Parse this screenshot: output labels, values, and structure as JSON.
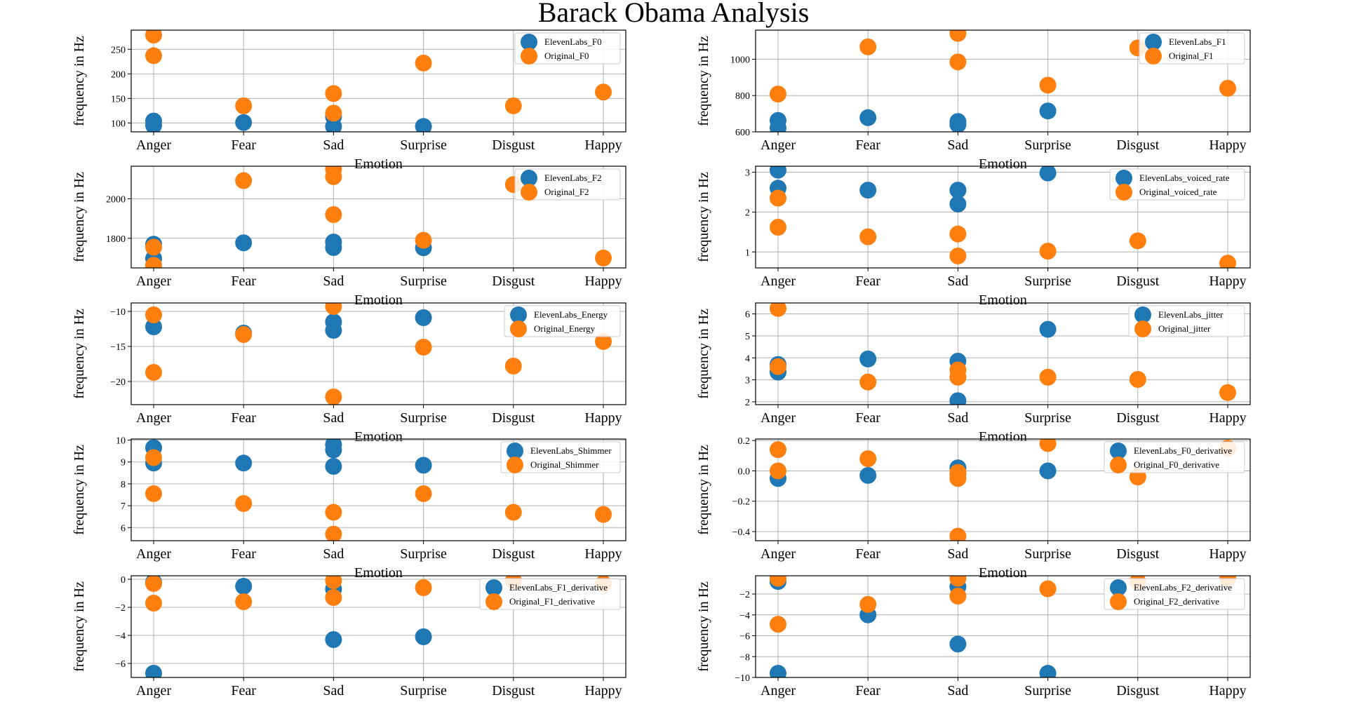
{
  "title": "Barack Obama Analysis",
  "colors": {
    "elevenlabs": "#1f77b4",
    "original": "#ff7f0e",
    "grid": "#b0b0b0"
  },
  "chart_data": [
    {
      "type": "scatter",
      "xlabel": "Emotion",
      "ylabel": "frequency in Hz",
      "categories": [
        "Anger",
        "Fear",
        "Sad",
        "Surprise",
        "Disgust",
        "Happy"
      ],
      "ylim": [
        82,
        289
      ],
      "yticks": [
        100,
        150,
        200,
        250
      ],
      "ytick_labels": [
        "100",
        "150",
        "200",
        "250"
      ],
      "grid": true,
      "legend": "top-right",
      "series": [
        {
          "name": "ElevenLabs_F0",
          "points": [
            [
              "Anger",
              104
            ],
            [
              "Anger",
              95
            ],
            [
              "Fear",
              101
            ],
            [
              "Sad",
              113
            ],
            [
              "Sad",
              93
            ],
            [
              "Surprise",
              93
            ]
          ]
        },
        {
          "name": "Original_F0",
          "points": [
            [
              "Anger",
              279
            ],
            [
              "Anger",
              237
            ],
            [
              "Fear",
              135
            ],
            [
              "Sad",
              160
            ],
            [
              "Sad",
              120
            ],
            [
              "Surprise",
              222
            ],
            [
              "Disgust",
              135
            ],
            [
              "Happy",
              163
            ]
          ]
        }
      ]
    },
    {
      "type": "scatter",
      "xlabel": "Emotion",
      "ylabel": "frequency in Hz",
      "categories": [
        "Anger",
        "Fear",
        "Sad",
        "Surprise",
        "Disgust",
        "Happy"
      ],
      "ylim": [
        600,
        1160
      ],
      "yticks": [
        600,
        800,
        1000
      ],
      "ytick_labels": [
        "600",
        "800",
        "1000"
      ],
      "grid": true,
      "legend": "top-right",
      "series": [
        {
          "name": "ElevenLabs_F1",
          "points": [
            [
              "Anger",
              663
            ],
            [
              "Anger",
              622
            ],
            [
              "Fear",
              678
            ],
            [
              "Sad",
              657
            ],
            [
              "Sad",
              640
            ],
            [
              "Surprise",
              715
            ]
          ]
        },
        {
          "name": "Original_F1",
          "points": [
            [
              "Anger",
              808
            ],
            [
              "Fear",
              1068
            ],
            [
              "Sad",
              1142
            ],
            [
              "Sad",
              985
            ],
            [
              "Surprise",
              857
            ],
            [
              "Disgust",
              1062
            ],
            [
              "Happy",
              840
            ]
          ]
        }
      ]
    },
    {
      "type": "scatter",
      "xlabel": "Emotion",
      "ylabel": "frequency in Hz",
      "categories": [
        "Anger",
        "Fear",
        "Sad",
        "Surprise",
        "Disgust",
        "Happy"
      ],
      "ylim": [
        1650,
        2165
      ],
      "yticks": [
        1800,
        2000
      ],
      "ytick_labels": [
        "1800",
        "2000"
      ],
      "grid": true,
      "legend": "top-right",
      "series": [
        {
          "name": "ElevenLabs_F2",
          "points": [
            [
              "Anger",
              1770
            ],
            [
              "Anger",
              1698
            ],
            [
              "Fear",
              1777
            ],
            [
              "Sad",
              1781
            ],
            [
              "Sad",
              1753
            ],
            [
              "Surprise",
              1752
            ]
          ]
        },
        {
          "name": "Original_F2",
          "points": [
            [
              "Anger",
              1755
            ],
            [
              "Anger",
              1663
            ],
            [
              "Fear",
              2092
            ],
            [
              "Sad",
              2150
            ],
            [
              "Sad",
              2112
            ],
            [
              "Sad",
              1920
            ],
            [
              "Surprise",
              1790
            ],
            [
              "Disgust",
              2072
            ],
            [
              "Happy",
              1700
            ]
          ]
        }
      ]
    },
    {
      "type": "scatter",
      "xlabel": "Emotion",
      "ylabel": "frequency in Hz",
      "categories": [
        "Anger",
        "Fear",
        "Sad",
        "Surprise",
        "Disgust",
        "Happy"
      ],
      "ylim": [
        0.6,
        3.15
      ],
      "yticks": [
        1,
        2,
        3
      ],
      "ytick_labels": [
        "1",
        "2",
        "3"
      ],
      "grid": true,
      "legend": "top-right",
      "series": [
        {
          "name": "ElevenLabs_voiced_rate",
          "points": [
            [
              "Anger",
              3.05
            ],
            [
              "Anger",
              2.6
            ],
            [
              "Fear",
              2.55
            ],
            [
              "Sad",
              2.55
            ],
            [
              "Sad",
              2.2
            ],
            [
              "Surprise",
              2.98
            ]
          ]
        },
        {
          "name": "Original_voiced_rate",
          "points": [
            [
              "Anger",
              2.35
            ],
            [
              "Anger",
              1.62
            ],
            [
              "Fear",
              1.38
            ],
            [
              "Sad",
              1.45
            ],
            [
              "Sad",
              0.9
            ],
            [
              "Surprise",
              1.02
            ],
            [
              "Disgust",
              1.28
            ],
            [
              "Happy",
              0.72
            ]
          ]
        }
      ]
    },
    {
      "type": "scatter",
      "xlabel": "Emotion",
      "ylabel": "frequency in Hz",
      "categories": [
        "Anger",
        "Fear",
        "Sad",
        "Surprise",
        "Disgust",
        "Happy"
      ],
      "ylim": [
        -23.3,
        -8.8
      ],
      "yticks": [
        -20,
        -15,
        -10
      ],
      "ytick_labels": [
        "−20",
        "−15",
        "−10"
      ],
      "grid": true,
      "legend": "top-right",
      "series": [
        {
          "name": "ElevenLabs_Energy",
          "points": [
            [
              "Anger",
              -12.2
            ],
            [
              "Fear",
              -13.1
            ],
            [
              "Sad",
              -11.5
            ],
            [
              "Sad",
              -12.7
            ],
            [
              "Surprise",
              -10.9
            ]
          ]
        },
        {
          "name": "Original_Energy",
          "points": [
            [
              "Anger",
              -10.5
            ],
            [
              "Anger",
              -18.7
            ],
            [
              "Fear",
              -13.3
            ],
            [
              "Sad",
              -9.3
            ],
            [
              "Sad",
              -22.2
            ],
            [
              "Surprise",
              -15.1
            ],
            [
              "Disgust",
              -17.8
            ],
            [
              "Happy",
              -14.3
            ]
          ]
        }
      ]
    },
    {
      "type": "scatter",
      "xlabel": "Emotion",
      "ylabel": "frequency in Hz",
      "categories": [
        "Anger",
        "Fear",
        "Sad",
        "Surprise",
        "Disgust",
        "Happy"
      ],
      "ylim": [
        1.87,
        6.5
      ],
      "yticks": [
        2,
        3,
        4,
        5,
        6
      ],
      "ytick_labels": [
        "2",
        "3",
        "4",
        "5",
        "6"
      ],
      "grid": true,
      "legend": "top-right",
      "series": [
        {
          "name": "ElevenLabs_jitter",
          "points": [
            [
              "Anger",
              3.7
            ],
            [
              "Anger",
              3.35
            ],
            [
              "Fear",
              3.95
            ],
            [
              "Sad",
              3.85
            ],
            [
              "Sad",
              2.05
            ],
            [
              "Surprise",
              5.3
            ]
          ]
        },
        {
          "name": "Original_jitter",
          "points": [
            [
              "Anger",
              6.25
            ],
            [
              "Anger",
              3.6
            ],
            [
              "Fear",
              2.9
            ],
            [
              "Sad",
              3.45
            ],
            [
              "Sad",
              3.12
            ],
            [
              "Surprise",
              3.12
            ],
            [
              "Disgust",
              3.02
            ],
            [
              "Happy",
              2.42
            ]
          ]
        }
      ]
    },
    {
      "type": "scatter",
      "xlabel": "Emotion",
      "ylabel": "frequency in Hz",
      "categories": [
        "Anger",
        "Fear",
        "Sad",
        "Surprise",
        "Disgust",
        "Happy"
      ],
      "ylim": [
        5.4,
        10.05
      ],
      "yticks": [
        6,
        7,
        8,
        9,
        10
      ],
      "ytick_labels": [
        "6",
        "7",
        "8",
        "9",
        "10"
      ],
      "grid": true,
      "legend": "top-right",
      "series": [
        {
          "name": "ElevenLabs_Shimmer",
          "points": [
            [
              "Anger",
              9.65
            ],
            [
              "Anger",
              8.95
            ],
            [
              "Fear",
              8.95
            ],
            [
              "Sad",
              9.8
            ],
            [
              "Sad",
              9.55
            ],
            [
              "Sad",
              8.8
            ],
            [
              "Surprise",
              8.85
            ]
          ]
        },
        {
          "name": "Original_Shimmer",
          "points": [
            [
              "Anger",
              9.2
            ],
            [
              "Anger",
              7.55
            ],
            [
              "Fear",
              7.1
            ],
            [
              "Sad",
              6.7
            ],
            [
              "Sad",
              5.7
            ],
            [
              "Surprise",
              7.55
            ],
            [
              "Disgust",
              6.7
            ],
            [
              "Happy",
              6.6
            ]
          ]
        }
      ]
    },
    {
      "type": "scatter",
      "xlabel": "Emotion",
      "ylabel": "frequency in Hz",
      "categories": [
        "Anger",
        "Fear",
        "Sad",
        "Surprise",
        "Disgust",
        "Happy"
      ],
      "ylim": [
        -0.46,
        0.21
      ],
      "yticks": [
        -0.4,
        -0.2,
        0.0,
        0.2
      ],
      "ytick_labels": [
        "−0.4",
        "−0.2",
        "0.0",
        "0.2"
      ],
      "grid": true,
      "legend": "top-right",
      "series": [
        {
          "name": "ElevenLabs_F0_derivative",
          "points": [
            [
              "Anger",
              -0.05
            ],
            [
              "Fear",
              -0.03
            ],
            [
              "Sad",
              0.02
            ],
            [
              "Sad",
              -0.02
            ],
            [
              "Surprise",
              0.0
            ]
          ]
        },
        {
          "name": "Original_F0_derivative",
          "points": [
            [
              "Anger",
              0.14
            ],
            [
              "Anger",
              0.0
            ],
            [
              "Fear",
              0.08
            ],
            [
              "Sad",
              -0.01
            ],
            [
              "Sad",
              -0.05
            ],
            [
              "Sad",
              -0.43
            ],
            [
              "Surprise",
              0.18
            ],
            [
              "Disgust",
              -0.04
            ],
            [
              "Happy",
              0.15
            ]
          ]
        }
      ]
    },
    {
      "type": "scatter",
      "xlabel": "Emotion",
      "ylabel": "frequency in Hz",
      "categories": [
        "Anger",
        "Fear",
        "Sad",
        "Surprise",
        "Disgust",
        "Happy"
      ],
      "ylim": [
        -7.0,
        0.25
      ],
      "yticks": [
        -6,
        -4,
        -2,
        0
      ],
      "ytick_labels": [
        "−6",
        "−4",
        "−2",
        "0"
      ],
      "grid": true,
      "legend": "top-right",
      "series": [
        {
          "name": "ElevenLabs_F1_derivative",
          "points": [
            [
              "Anger",
              -0.2
            ],
            [
              "Anger",
              -6.7
            ],
            [
              "Fear",
              -0.5
            ],
            [
              "Sad",
              -0.7
            ],
            [
              "Sad",
              -4.3
            ],
            [
              "Surprise",
              -4.1
            ]
          ]
        },
        {
          "name": "Original_F1_derivative",
          "points": [
            [
              "Anger",
              -0.3
            ],
            [
              "Anger",
              -1.7
            ],
            [
              "Fear",
              -1.6
            ],
            [
              "Sad",
              -0.1
            ],
            [
              "Sad",
              -1.3
            ],
            [
              "Surprise",
              -0.6
            ],
            [
              "Disgust",
              -0.1
            ],
            [
              "Happy",
              -0.3
            ]
          ]
        }
      ]
    },
    {
      "type": "scatter",
      "xlabel": "Emotion",
      "ylabel": "frequency in Hz",
      "categories": [
        "Anger",
        "Fear",
        "Sad",
        "Surprise",
        "Disgust",
        "Happy"
      ],
      "ylim": [
        -10.0,
        -0.25
      ],
      "yticks": [
        -10,
        -8,
        -6,
        -4,
        -2
      ],
      "ytick_labels": [
        "−10",
        "−8",
        "−6",
        "−4",
        "−2"
      ],
      "grid": true,
      "legend": "top-right",
      "series": [
        {
          "name": "ElevenLabs_F2_derivative",
          "points": [
            [
              "Anger",
              -0.8
            ],
            [
              "Anger",
              -9.6
            ],
            [
              "Fear",
              -4.0
            ],
            [
              "Sad",
              -1.3
            ],
            [
              "Sad",
              -6.8
            ],
            [
              "Surprise",
              -9.6
            ]
          ]
        },
        {
          "name": "Original_F2_derivative",
          "points": [
            [
              "Anger",
              -0.5
            ],
            [
              "Anger",
              -4.9
            ],
            [
              "Fear",
              -3.0
            ],
            [
              "Sad",
              -0.5
            ],
            [
              "Sad",
              -2.2
            ],
            [
              "Surprise",
              -1.5
            ],
            [
              "Disgust",
              -0.8
            ],
            [
              "Happy",
              -0.5
            ]
          ]
        }
      ]
    }
  ]
}
